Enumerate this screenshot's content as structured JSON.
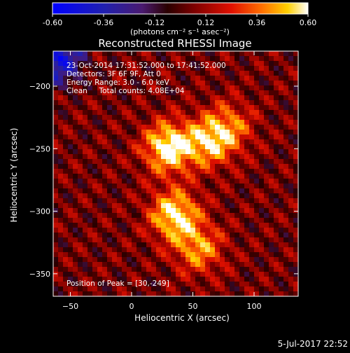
{
  "colorbar": {
    "ticks": [
      "-0.60",
      "-0.36",
      "-0.12",
      "0.12",
      "0.36",
      "0.60"
    ],
    "tick_values": [
      -0.6,
      -0.36,
      -0.12,
      0.12,
      0.36,
      0.6
    ],
    "range": [
      -0.6,
      0.6
    ],
    "unit_label": "(photons cm⁻² s⁻¹ asec⁻²)"
  },
  "chart_data": {
    "type": "heatmap",
    "title": "Reconstructed RHESSI Image",
    "xlabel": "Heliocentric X (arcsec)",
    "ylabel": "Heliocentric Y (arcsec)",
    "xlim": [
      -64,
      136
    ],
    "ylim": [
      -368,
      -172
    ],
    "x_ticks": [
      -50,
      0,
      50,
      100
    ],
    "y_ticks": [
      -200,
      -250,
      -300,
      -350
    ],
    "sources": [
      {
        "x": 30,
        "y": -249,
        "peak": 0.6
      },
      {
        "x": 63,
        "y": -245,
        "peak": 0.42
      },
      {
        "x": 35,
        "y": -303,
        "peak": 0.55
      },
      {
        "x": 55,
        "y": -330,
        "peak": 0.38
      },
      {
        "x": 80,
        "y": -232,
        "peak": 0.3
      }
    ],
    "annotations": [
      "23-Oct-2014 17:31:52.000 to 17:41:52.000",
      "Detectors: 3F 6F 9F, Att 0",
      "Energy Range: 3.0 - 6.0 keV",
      "Clean     Total counts: 4.08E+04"
    ],
    "peak_label": "Position of Peak = [30,-249]"
  },
  "footer": {
    "timestamp": "5-Jul-2017 22:52"
  }
}
